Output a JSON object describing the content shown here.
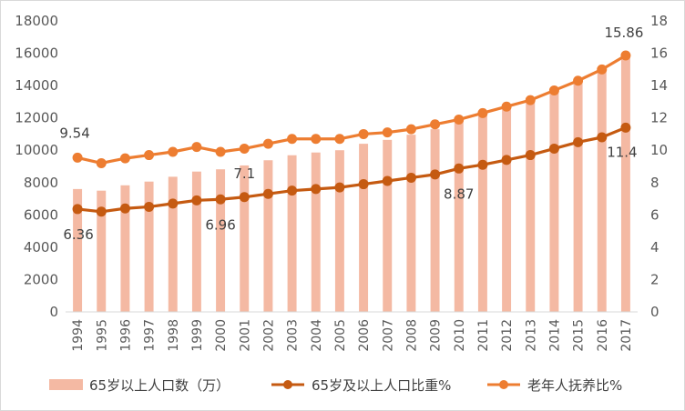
{
  "chart_data": {
    "type": "bar+line",
    "categories": [
      "1994",
      "1995",
      "1996",
      "1997",
      "1998",
      "1999",
      "2000",
      "2001",
      "2002",
      "2003",
      "2004",
      "2005",
      "2006",
      "2007",
      "2008",
      "2009",
      "2010",
      "2011",
      "2012",
      "2013",
      "2014",
      "2015",
      "2016",
      "2017"
    ],
    "y_left": {
      "ylim": [
        0,
        18000
      ],
      "ticks": [
        "0",
        "2000",
        "4000",
        "6000",
        "8000",
        "10000",
        "12000",
        "14000",
        "16000",
        "18000"
      ]
    },
    "y_right": {
      "ylim": [
        0,
        18
      ],
      "ticks": [
        "0",
        "2",
        "4",
        "6",
        "8",
        "10",
        "12",
        "14",
        "16",
        "18"
      ]
    },
    "series": [
      {
        "name": "65岁以上人口数（万）",
        "kind": "bar",
        "axis": "left",
        "color": "#F4B9A3",
        "values": [
          7600,
          7500,
          7830,
          8060,
          8360,
          8680,
          8820,
          9060,
          9380,
          9690,
          9860,
          10000,
          10400,
          10640,
          10960,
          11300,
          11900,
          12300,
          12700,
          13160,
          13800,
          14400,
          15000,
          15830
        ]
      },
      {
        "name": "65岁及以上人口比重%",
        "kind": "line",
        "axis": "right",
        "color": "#C55A11",
        "values": [
          6.36,
          6.2,
          6.4,
          6.5,
          6.7,
          6.9,
          6.96,
          7.1,
          7.3,
          7.5,
          7.6,
          7.7,
          7.9,
          8.1,
          8.3,
          8.5,
          8.87,
          9.1,
          9.4,
          9.7,
          10.1,
          10.5,
          10.8,
          11.4
        ],
        "data_labels": [
          {
            "index": 0,
            "text": "6.36"
          },
          {
            "index": 6,
            "text": "6.96"
          },
          {
            "index": 7,
            "text": "7.1"
          },
          {
            "index": 16,
            "text": "8.87"
          },
          {
            "index": 23,
            "text": "11.4"
          }
        ]
      },
      {
        "name": "老年人抚养比%",
        "kind": "line",
        "axis": "right",
        "color": "#ED7D31",
        "values": [
          9.54,
          9.2,
          9.5,
          9.7,
          9.9,
          10.2,
          9.9,
          10.1,
          10.4,
          10.7,
          10.7,
          10.7,
          11.0,
          11.1,
          11.3,
          11.6,
          11.9,
          12.3,
          12.7,
          13.1,
          13.7,
          14.3,
          15.0,
          15.86
        ],
        "data_labels": [
          {
            "index": 0,
            "text": "9.54"
          },
          {
            "index": 23,
            "text": "15.86"
          }
        ]
      }
    ],
    "grid": false,
    "legend_position": "bottom"
  }
}
